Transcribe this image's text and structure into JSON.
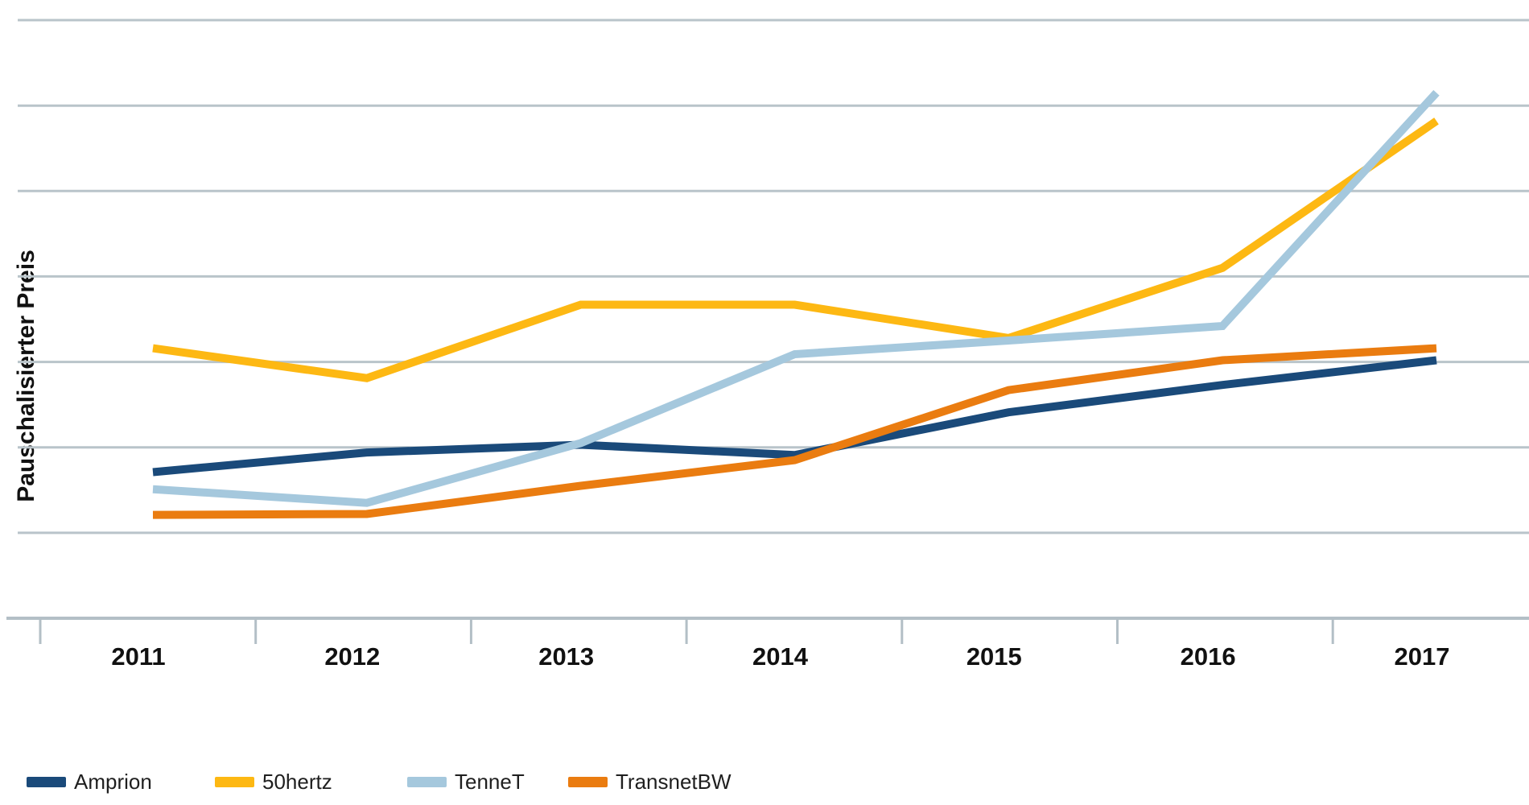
{
  "chart_data": {
    "type": "line",
    "title": "",
    "xlabel": "",
    "ylabel": "Pauschalisierter Preis",
    "categories": [
      "2011",
      "2012",
      "2013",
      "2014",
      "2015",
      "2016",
      "2017"
    ],
    "series": [
      {
        "name": "Amprion",
        "color": "#1a4a7a",
        "values": [
          1.71,
          1.94,
          2.03,
          1.91,
          2.41,
          2.73,
          3.02
        ]
      },
      {
        "name": "50hertz",
        "color": "#fdb813",
        "values": [
          3.16,
          2.81,
          3.67,
          3.67,
          3.28,
          4.1,
          5.82
        ]
      },
      {
        "name": "TenneT",
        "color": "#a5c8dd",
        "values": [
          1.51,
          1.35,
          2.05,
          3.09,
          3.25,
          3.42,
          6.15
        ]
      },
      {
        "name": "TransnetBW",
        "color": "#ea7c10",
        "values": [
          1.21,
          1.22,
          1.55,
          1.85,
          2.67,
          3.02,
          3.16
        ]
      }
    ],
    "ylim": [
      0,
      7.4
    ],
    "y_axis_tick_labels": [],
    "y_unit": "relative (unlabeled axis, values in gridline intervals above baseline)",
    "gridlines_at": [
      1,
      2,
      3,
      4,
      5,
      6,
      7
    ],
    "grid": "horizontal-only",
    "legend_position": "bottom-left",
    "colors": {
      "gridline": "#b9c4ca",
      "axis_line": "#b3bfc6",
      "text": "#111111"
    }
  }
}
